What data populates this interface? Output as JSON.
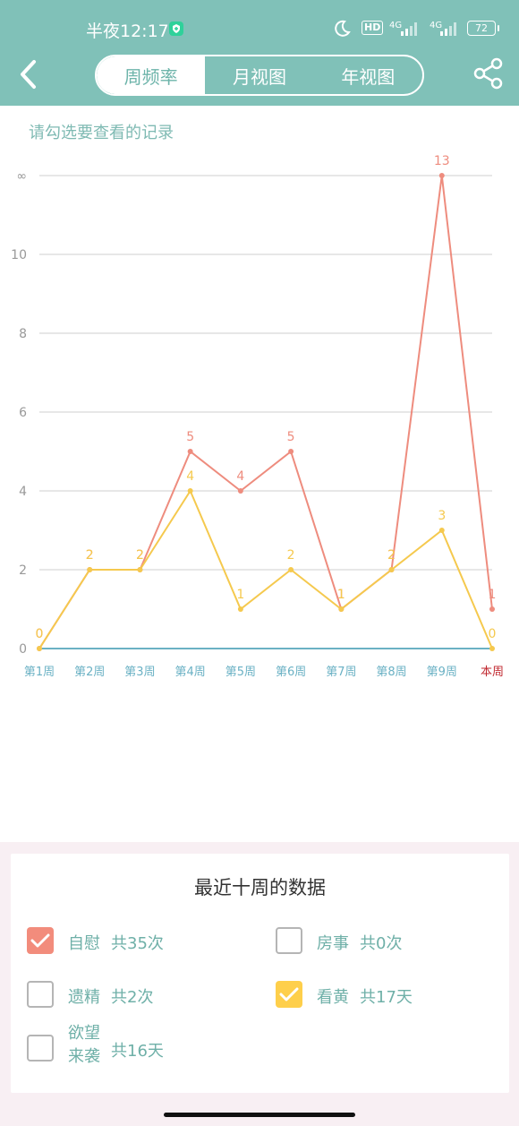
{
  "status": {
    "time": "半夜12:17",
    "hd": "HD",
    "net1": "4G",
    "net2": "4G",
    "battery": "72"
  },
  "header": {
    "tabs": [
      "周频率",
      "月视图",
      "年视图"
    ],
    "active_tab": 0
  },
  "hint": "请勾选要查看的记录",
  "chart_data": {
    "type": "line",
    "categories": [
      "第1周",
      "第2周",
      "第3周",
      "第4周",
      "第5周",
      "第6周",
      "第7周",
      "第8周",
      "第9周",
      "本周"
    ],
    "y_ticks": [
      "0",
      "2",
      "4",
      "6",
      "8",
      "10",
      "∞"
    ],
    "series": [
      {
        "name": "自慰",
        "color": "#ee8c7e",
        "values": [
          0,
          2,
          2,
          5,
          4,
          5,
          1,
          2,
          13,
          1
        ]
      },
      {
        "name": "看黄",
        "color": "#f5c94e",
        "values": [
          0,
          2,
          2,
          4,
          1,
          2,
          1,
          2,
          3,
          0
        ]
      }
    ],
    "axis_color": "#6ab1c4",
    "current_label_color": "#c0282f"
  },
  "panel": {
    "title": "最近十周的数据",
    "options": [
      {
        "label": "自慰",
        "count": "共35次",
        "checked": true,
        "color": "#f28c7c"
      },
      {
        "label": "房事",
        "count": "共0次",
        "checked": false
      },
      {
        "label": "遗精",
        "count": "共2次",
        "checked": false
      },
      {
        "label": "看黄",
        "count": "共17天",
        "checked": true,
        "color": "#fecf4b"
      },
      {
        "label": "欲望来袭",
        "count": "共16天",
        "checked": false
      }
    ]
  }
}
